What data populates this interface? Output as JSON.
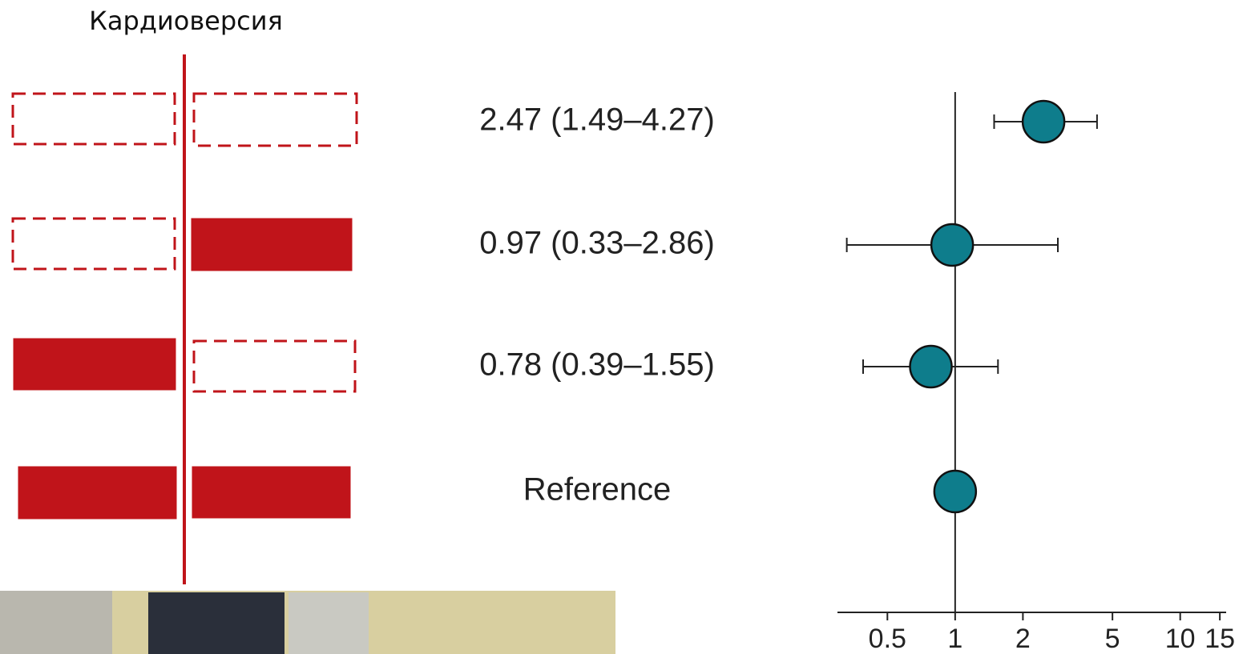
{
  "chart_data": {
    "type": "forest",
    "title": "Кардиоверсия",
    "labels": [
      "2.47 (1.49–4.27)",
      "0.97 (0.33–2.86)",
      "0.78 (0.39–1.55)",
      "Reference"
    ],
    "values": [
      2.47,
      0.97,
      0.78,
      1
    ],
    "lower": [
      1.49,
      0.33,
      0.39,
      null
    ],
    "upper": [
      4.27,
      2.86,
      1.55,
      null
    ],
    "color": "#0e7d8c",
    "xscale": "log",
    "xlim": [
      0.3,
      16
    ],
    "xticks": [
      0.5,
      1,
      2,
      5,
      10,
      15
    ]
  }
}
